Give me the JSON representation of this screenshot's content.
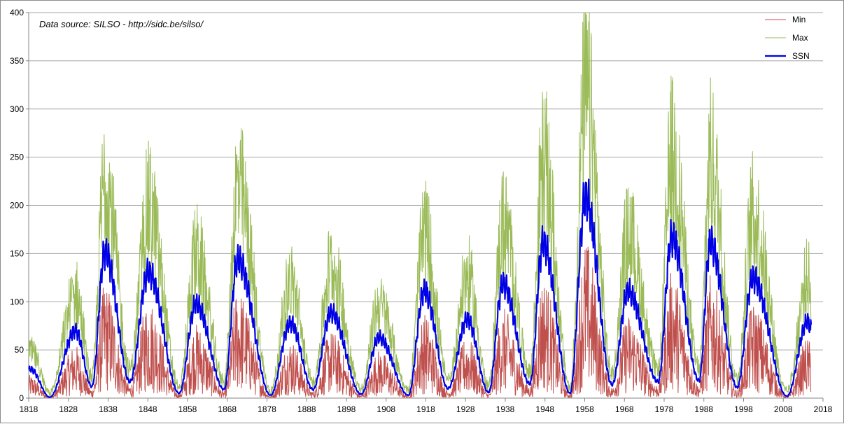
{
  "chart_data": {
    "type": "line",
    "title": "",
    "annotation": "Data source: SILSO - http://sidc.be/silso/",
    "xlabel": "",
    "ylabel": "",
    "xlim": [
      1818,
      2018
    ],
    "ylim": [
      0,
      400
    ],
    "x_ticks": [
      "1818",
      "1828",
      "1838",
      "1848",
      "1858",
      "1868",
      "1878",
      "1888",
      "1898",
      "1908",
      "1918",
      "1928",
      "1938",
      "1948",
      "1958",
      "1968",
      "1978",
      "1988",
      "1998",
      "2008",
      "2018"
    ],
    "y_ticks": [
      "0",
      "50",
      "100",
      "150",
      "200",
      "250",
      "300",
      "350",
      "400"
    ],
    "grid": "horizontal",
    "legend_position": "top-right",
    "cycle_maxima_approx": [
      {
        "year": 1818.5,
        "ssn": 30
      },
      {
        "year": 1829.8,
        "ssn": 70
      },
      {
        "year": 1837.2,
        "ssn": 152
      },
      {
        "year": 1848.1,
        "ssn": 131
      },
      {
        "year": 1860.1,
        "ssn": 98
      },
      {
        "year": 1870.6,
        "ssn": 144
      },
      {
        "year": 1883.9,
        "ssn": 78
      },
      {
        "year": 1894.1,
        "ssn": 89
      },
      {
        "year": 1906.2,
        "ssn": 63
      },
      {
        "year": 1917.6,
        "ssn": 112
      },
      {
        "year": 1928.4,
        "ssn": 82
      },
      {
        "year": 1937.4,
        "ssn": 119
      },
      {
        "year": 1947.5,
        "ssn": 161
      },
      {
        "year": 1958.2,
        "ssn": 208
      },
      {
        "year": 1968.9,
        "ssn": 111
      },
      {
        "year": 1979.9,
        "ssn": 167
      },
      {
        "year": 1989.6,
        "ssn": 162
      },
      {
        "year": 2000.3,
        "ssn": 125
      },
      {
        "year": 2014.2,
        "ssn": 80
      }
    ],
    "cycle_minima_approx": [
      {
        "year": 1823.3,
        "ssn": 1
      },
      {
        "year": 1833.9,
        "ssn": 12
      },
      {
        "year": 1843.5,
        "ssn": 17
      },
      {
        "year": 1855.9,
        "ssn": 5
      },
      {
        "year": 1867.2,
        "ssn": 9
      },
      {
        "year": 1878.9,
        "ssn": 3
      },
      {
        "year": 1889.6,
        "ssn": 9
      },
      {
        "year": 1901.7,
        "ssn": 4
      },
      {
        "year": 1913.6,
        "ssn": 3
      },
      {
        "year": 1923.6,
        "ssn": 10
      },
      {
        "year": 1933.8,
        "ssn": 6
      },
      {
        "year": 1944.2,
        "ssn": 15
      },
      {
        "year": 1954.3,
        "ssn": 5
      },
      {
        "year": 1964.9,
        "ssn": 14
      },
      {
        "year": 1976.5,
        "ssn": 17
      },
      {
        "year": 1986.8,
        "ssn": 18
      },
      {
        "year": 1996.4,
        "ssn": 11
      },
      {
        "year": 2008.9,
        "ssn": 2
      },
      {
        "year": 2014.9,
        "ssn": 72
      }
    ],
    "series": [
      {
        "name": "Min",
        "color": "#c0504d",
        "ratio_to_ssn": 0.72,
        "stroke": 1
      },
      {
        "name": "Max",
        "color": "#9bbb59",
        "ratio_to_ssn": 1.55,
        "stroke": 1
      },
      {
        "name": "SSN",
        "color": "#0000e6",
        "ratio_to_ssn": 1.0,
        "stroke": 2.2
      }
    ]
  }
}
